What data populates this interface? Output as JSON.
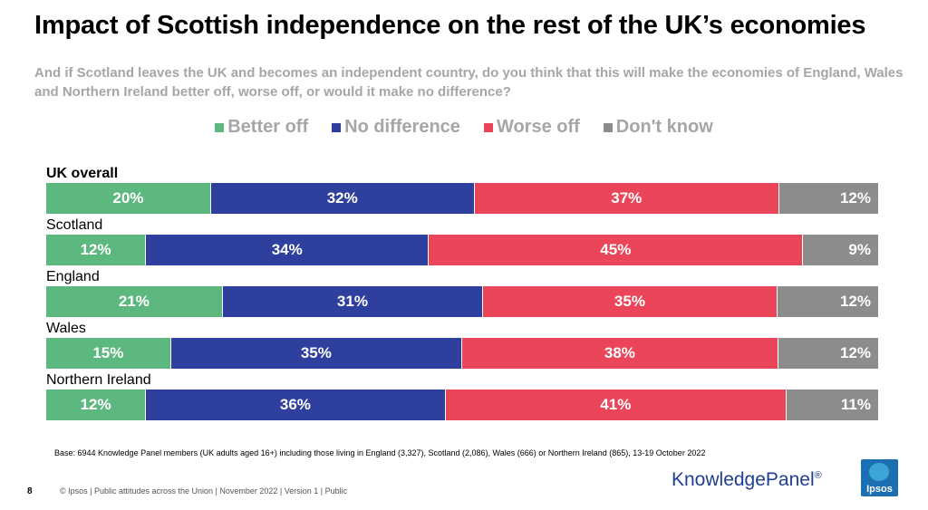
{
  "title": "Impact of Scottish independence on the rest of the UK’s economies",
  "subtitle": "And if Scotland leaves the UK and becomes an independent country, do you think that this will make the economies of England, Wales and Northern Ireland better off, worse off, or would it make no difference?",
  "colors": {
    "better_off": "#5cb87f",
    "no_difference": "#2e3f9e",
    "worse_off": "#ea4558",
    "dont_know": "#8c8c8c"
  },
  "chart_data": {
    "type": "bar",
    "orientation": "horizontal",
    "stacked": true,
    "percent": true,
    "categories": [
      "UK overall",
      "Scotland",
      "England",
      "Wales",
      "Northern Ireland"
    ],
    "series": [
      {
        "name": "Better off",
        "color": "#5cb87f",
        "values": [
          20,
          12,
          21,
          15,
          12
        ]
      },
      {
        "name": "No difference",
        "color": "#2e3f9e",
        "values": [
          32,
          34,
          31,
          35,
          36
        ]
      },
      {
        "name": "Worse off",
        "color": "#ea4558",
        "values": [
          37,
          45,
          35,
          38,
          41
        ]
      },
      {
        "name": "Don't know",
        "color": "#8c8c8c",
        "values": [
          12,
          9,
          12,
          12,
          11
        ]
      }
    ],
    "legend_position": "top",
    "data_label_suffix": "%"
  },
  "base_note": "Base: 6944 Knowledge Panel members (UK adults aged 16+) including those living in England (3,327), Scotland (2,086), Wales (666) or Northern Ireland (865), 13-19 October 2022",
  "footer": {
    "page_number": "8",
    "text": "© Ipsos | Public attitudes across the Union | November 2022 | Version 1 | Public"
  },
  "logos": {
    "knowledge_panel": "KnowledgePanel",
    "knowledge_panel_reg": "®",
    "ipsos": "Ipsos"
  }
}
